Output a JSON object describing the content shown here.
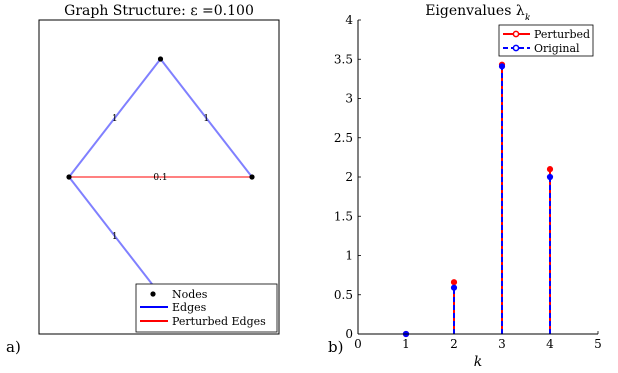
{
  "chart_data": [
    {
      "type": "graph",
      "panel_label": "a)",
      "title": "Graph Structure: ε =0.100",
      "nodes": [
        {
          "id": "n1",
          "x": 0.5,
          "y": 0.0
        },
        {
          "id": "n2",
          "x": 0.0,
          "y": 1.0
        },
        {
          "id": "n3",
          "x": 1.0,
          "y": 1.0
        },
        {
          "id": "n4",
          "x": 0.5,
          "y": 2.0
        }
      ],
      "edges": [
        {
          "source": "n2",
          "target": "n1",
          "label": "1",
          "kind": "edge"
        },
        {
          "source": "n1",
          "target": "n3",
          "label": "1",
          "kind": "edge"
        },
        {
          "source": "n2",
          "target": "n4",
          "label": "1",
          "kind": "edge"
        },
        {
          "source": "n2",
          "target": "n3",
          "label": "0.1",
          "kind": "perturbed"
        }
      ],
      "legend": {
        "placement": "bottom-right",
        "entries": [
          {
            "label": "Nodes",
            "kind": "node"
          },
          {
            "label": "Edges",
            "kind": "edge"
          },
          {
            "label": "Perturbed Edges",
            "kind": "perturbed"
          }
        ]
      },
      "colors": {
        "edge": "#8080ff",
        "perturbed": "#ff8080",
        "node": "#000000"
      }
    },
    {
      "type": "stem",
      "panel_label": "b)",
      "title": "Eigenvalues λ",
      "title_sub": "k",
      "xlabel": "k",
      "ylabel": "",
      "xlim": [
        0,
        5
      ],
      "ylim": [
        0,
        4
      ],
      "xticks": [
        "0",
        "1",
        "2",
        "3",
        "4",
        "5"
      ],
      "yticks": [
        "0",
        "0.5",
        "1",
        "1.5",
        "2",
        "2.5",
        "3",
        "3.5",
        "4"
      ],
      "x": [
        1,
        2,
        3,
        4
      ],
      "series": [
        {
          "name": "Perturbed",
          "values": [
            0,
            0.66,
            3.43,
            2.1
          ],
          "color": "#ff0000",
          "style": "solid"
        },
        {
          "name": "Original",
          "values": [
            0,
            0.59,
            3.41,
            2.0
          ],
          "color": "#0000ff",
          "style": "dashed"
        }
      ],
      "legend": {
        "placement": "top-right"
      }
    }
  ]
}
